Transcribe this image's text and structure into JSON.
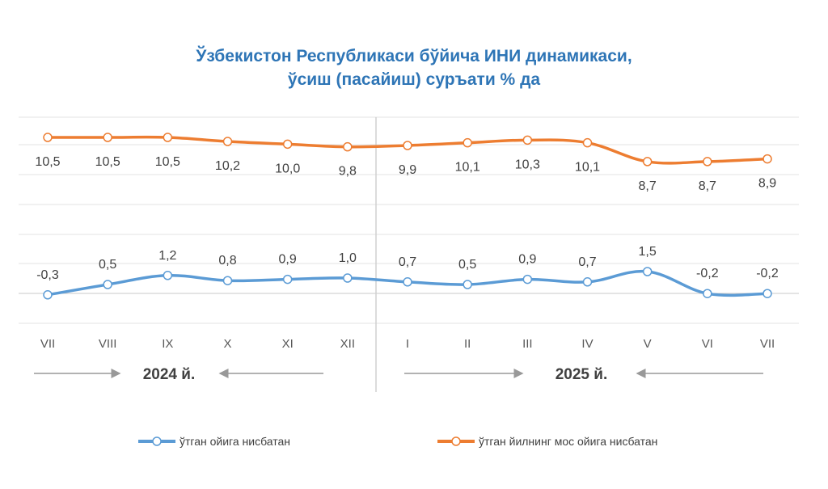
{
  "chart_data": {
    "type": "line",
    "title": "Ўзбекистон Республикаси бўйича ИНИ динамикаси,",
    "subtitle": "ўсиш (пасайиш) суръати % да",
    "categories": [
      "VII",
      "VIII",
      "IX",
      "X",
      "XI",
      "XII",
      "I",
      "II",
      "III",
      "IV",
      "V",
      "VI",
      "VII"
    ],
    "series": [
      {
        "name": "ўтган йилнинг мос ойига нисбатан",
        "color": "#ed7d31",
        "values": [
          10.5,
          10.5,
          10.5,
          10.2,
          10.0,
          9.8,
          9.9,
          10.1,
          10.3,
          10.1,
          8.7,
          8.7,
          8.9
        ],
        "labels": [
          "10,5",
          "10,5",
          "10,5",
          "10,2",
          "10,0",
          "9,8",
          "9,9",
          "10,1",
          "10,3",
          "10,1",
          "8,7",
          "8,7",
          "8,9"
        ]
      },
      {
        "name": "ўтган ойига нисбатан",
        "color": "#5b9bd5",
        "values": [
          -0.3,
          0.5,
          1.2,
          0.8,
          0.9,
          1.0,
          0.7,
          0.5,
          0.9,
          0.7,
          1.5,
          -0.2,
          -0.2
        ],
        "labels": [
          "-0,3",
          "0,5",
          "1,2",
          "0,8",
          "0,9",
          "1,0",
          "0,7",
          "0,5",
          "0,9",
          "0,7",
          "1,5",
          "-0,2",
          "-0,2"
        ]
      }
    ],
    "years": [
      "2024 й.",
      "2025 й."
    ],
    "legend_position": "bottom"
  }
}
